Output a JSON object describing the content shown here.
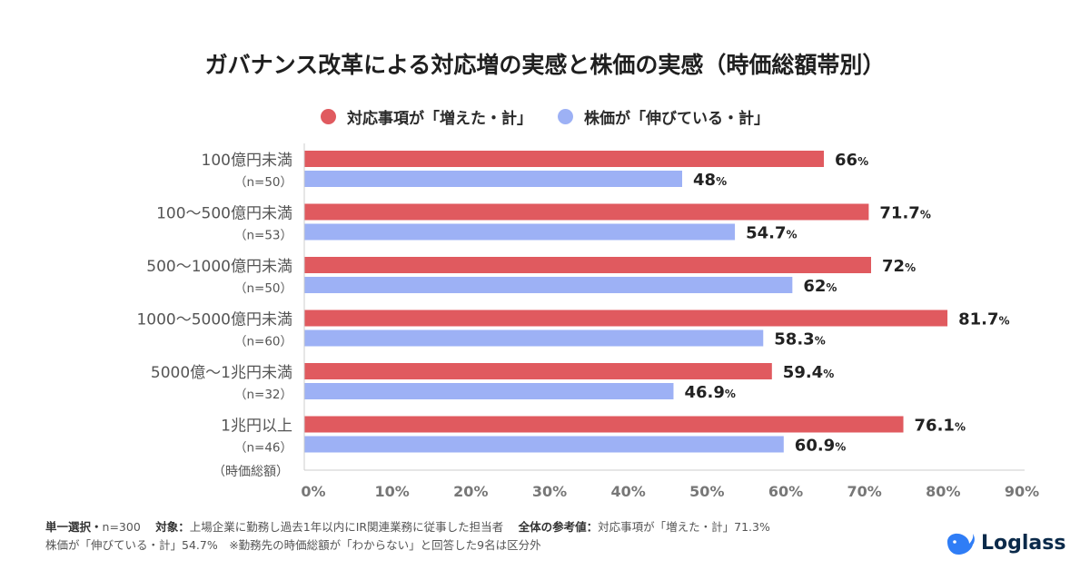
{
  "title": "ガバナンス改革による対応増の実感と株価の実感（時価総額帯別）",
  "legend": [
    {
      "label": "対応事項が「増えた・計」",
      "color": "#e05a5f"
    },
    {
      "label": "株価が「伸びている・計」",
      "color": "#9db1f5"
    }
  ],
  "chart_data": {
    "type": "bar",
    "orientation": "horizontal",
    "categories": [
      {
        "label": "100億円未満",
        "n": "（n=50）"
      },
      {
        "label": "100〜500億円未満",
        "n": "（n=53）"
      },
      {
        "label": "500〜1000億円未満",
        "n": "（n=50）"
      },
      {
        "label": "1000〜5000億円未満",
        "n": "（n=60）"
      },
      {
        "label": "5000億〜1兆円未満",
        "n": "（n=32）"
      },
      {
        "label": "1兆円以上",
        "n": "（n=46）"
      }
    ],
    "category_axis_note": "（時価総額）",
    "series": [
      {
        "name": "対応事項が「増えた・計」",
        "color": "#e05a5f",
        "values": [
          66,
          71.7,
          72,
          81.7,
          59.4,
          76.1
        ],
        "labels": [
          "66",
          "71.7",
          "72",
          "81.7",
          "59.4",
          "76.1"
        ]
      },
      {
        "name": "株価が「伸びている・計」",
        "color": "#9db1f5",
        "values": [
          48,
          54.7,
          62,
          58.3,
          46.9,
          60.9
        ],
        "labels": [
          "48",
          "54.7",
          "62",
          "58.3",
          "46.9",
          "60.9"
        ]
      }
    ],
    "value_suffix": "%",
    "xlim": [
      0,
      90
    ],
    "xticks": [
      "0%",
      "10%",
      "20%",
      "30%",
      "40%",
      "50%",
      "60%",
      "70%",
      "80%",
      "90%"
    ],
    "grid": false
  },
  "footnote": {
    "line1_a_label": "単一選択・",
    "line1_a_value": "n=300",
    "line1_b_label": "対象：",
    "line1_b_value": "上場企業に勤務し過去1年以内にIR関連業務に従事した担当者",
    "line1_c_label": "全体の参考値：",
    "line1_c_value": "対応事項が「増えた・計」71.3%",
    "line2": "株価が「伸びている・計」54.7%　※勤務先の時価総額が「わからない」と回答した9名は区分外"
  },
  "logo": {
    "text": "Loglass",
    "icon": "whale-icon",
    "color": "#2f7df6"
  }
}
